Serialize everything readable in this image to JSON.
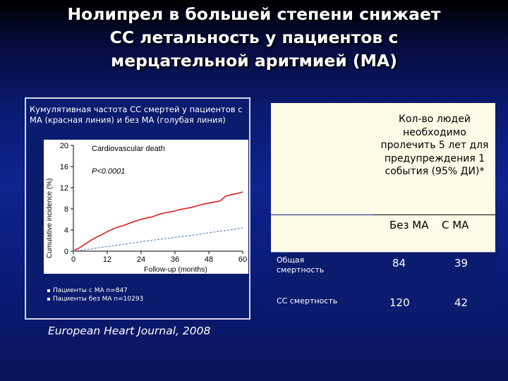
{
  "slide": {
    "title_lines": [
      "Нолипрел  в большей степени снижает",
      "СС летальность у пациентов с",
      "мерцательной аритмией (МА)"
    ],
    "source": "European Heart Journal, 2008"
  },
  "panel": {
    "caption": "Кумулятивная частота СС смертей у пациентов  с МА  (красная линия)  и без МА (голубая линия)",
    "legend": [
      "Пациенты с МА n=847",
      "Пациенты без МА n=10293"
    ]
  },
  "table": {
    "header": "Кол-во людей необходимо пролечить 5 лет для предупреждения 1 события (95% ДИ)*",
    "columns": [
      "Без МА",
      "С МА"
    ],
    "rows": [
      {
        "label": "Общая смертность",
        "values": [
          "84",
          "39"
        ]
      },
      {
        "label": "СС смертность",
        "values": [
          "120",
          "42"
        ]
      }
    ]
  },
  "chart_data": {
    "type": "line",
    "title": "Cardiovascular death",
    "annotation": "P<0.0001",
    "xlabel": "Follow-up (months)",
    "ylabel": "Cumulative incidence (%)",
    "xlim": [
      0,
      60
    ],
    "ylim": [
      0,
      20
    ],
    "x_ticks": [
      "0",
      "12",
      "24",
      "36",
      "48",
      "60"
    ],
    "y_ticks": [
      "0",
      "4",
      "8",
      "12",
      "16",
      "20"
    ],
    "grid": false,
    "series": [
      {
        "color": "#e02020",
        "style": "solid",
        "x": [
          0,
          2,
          4,
          6,
          8,
          10,
          12,
          14,
          16,
          18,
          20,
          22,
          24,
          26,
          28,
          30,
          32,
          34,
          36,
          38,
          40,
          42,
          44,
          46,
          48,
          50,
          52,
          54,
          56,
          58,
          60
        ],
        "y": [
          0,
          0.6,
          1.3,
          2.0,
          2.6,
          3.1,
          3.7,
          4.2,
          4.6,
          4.9,
          5.3,
          5.7,
          6.0,
          6.3,
          6.5,
          6.9,
          7.2,
          7.4,
          7.6,
          7.9,
          8.1,
          8.3,
          8.6,
          8.9,
          9.1,
          9.3,
          9.5,
          10.4,
          10.7,
          10.9,
          11.2
        ]
      },
      {
        "color": "#6a8fd0",
        "style": "dashed",
        "x": [
          0,
          6,
          12,
          18,
          24,
          30,
          36,
          42,
          48,
          54,
          60
        ],
        "y": [
          0,
          0.4,
          0.9,
          1.3,
          1.8,
          2.2,
          2.6,
          3.0,
          3.5,
          3.9,
          4.4
        ]
      }
    ]
  }
}
